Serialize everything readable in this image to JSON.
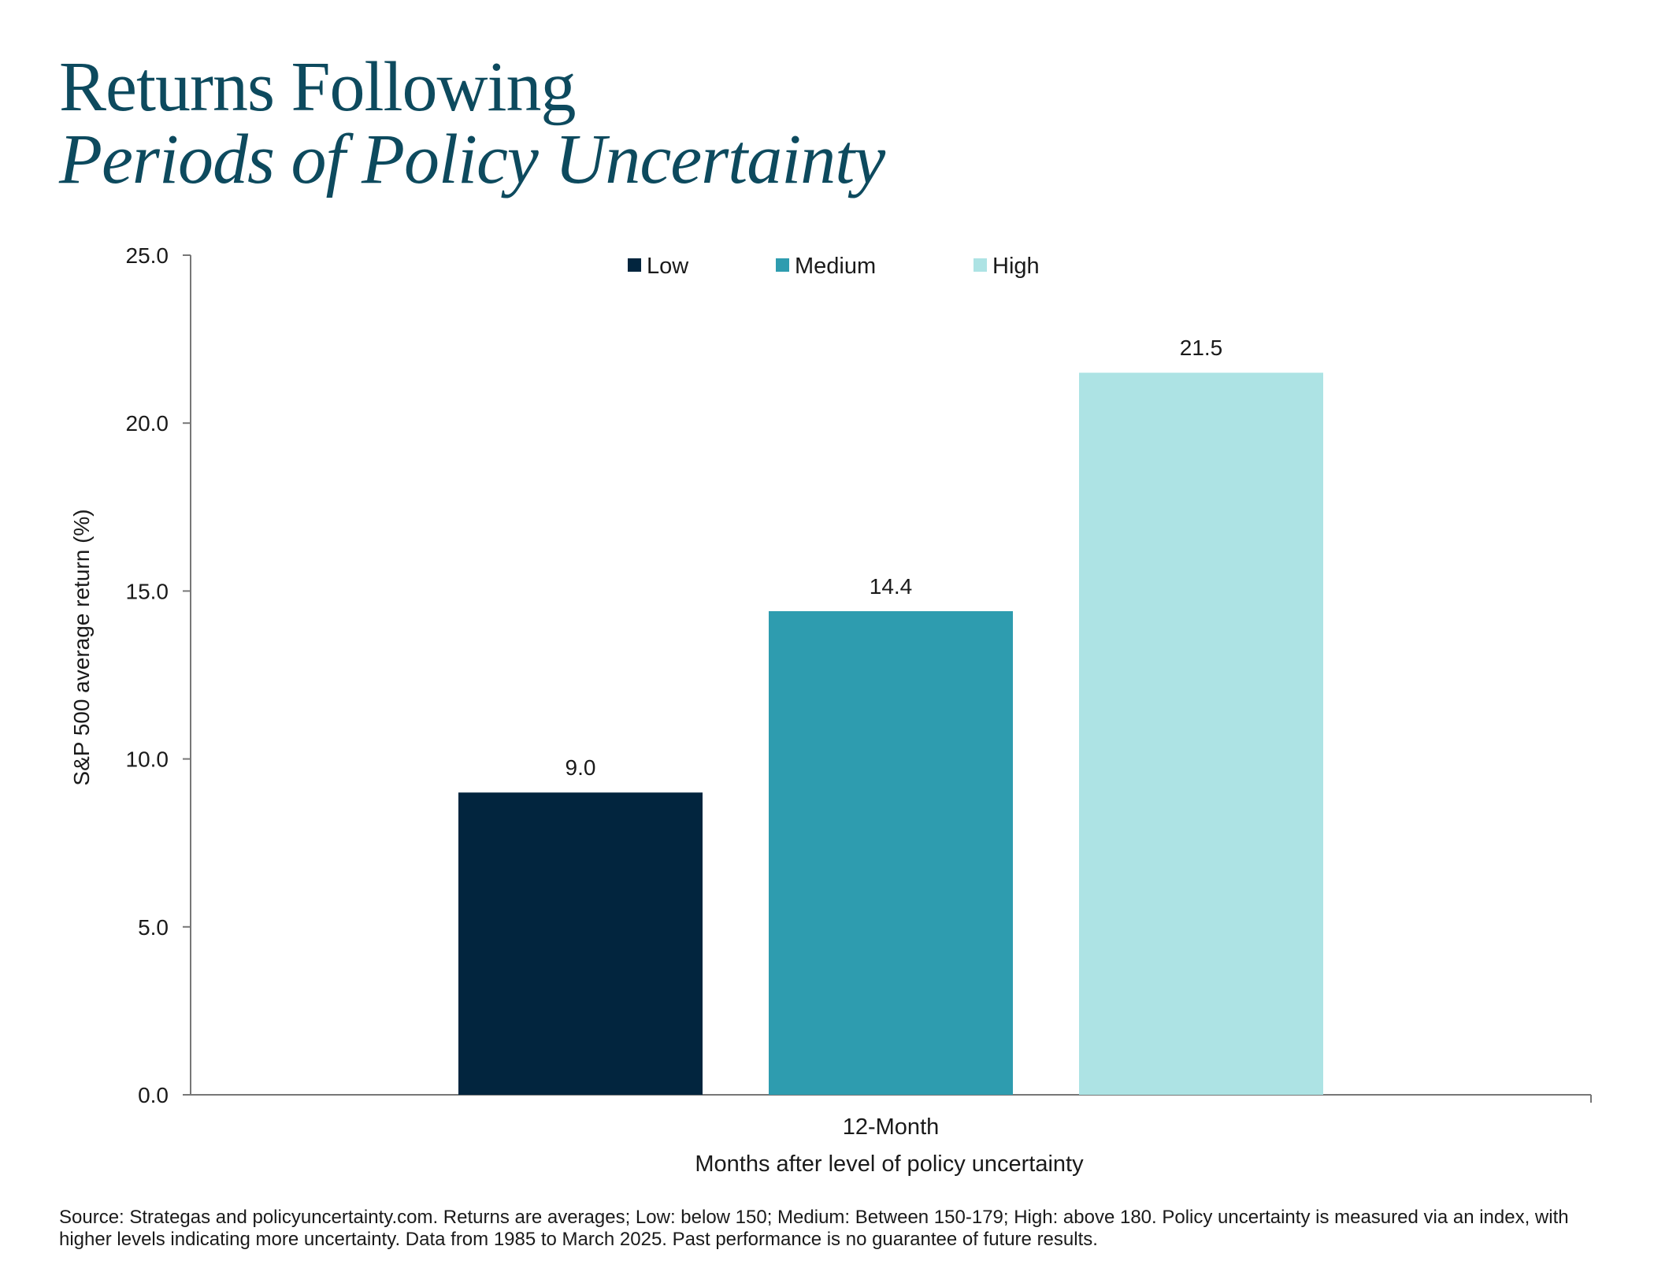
{
  "title": {
    "line1": "Returns Following",
    "line2": "Periods of Policy Uncertainty"
  },
  "chart_data": {
    "type": "bar",
    "categories": [
      "12-Month"
    ],
    "series": [
      {
        "name": "Low",
        "values": [
          9.0
        ],
        "color": "#02253e"
      },
      {
        "name": "Medium",
        "values": [
          14.4
        ],
        "color": "#2e9caf"
      },
      {
        "name": "High",
        "values": [
          21.5
        ],
        "color": "#ade3e4"
      }
    ],
    "data_labels": [
      "9.0",
      "14.4",
      "21.5"
    ],
    "ylim": [
      0,
      25
    ],
    "yticks": [
      "0.0",
      "5.0",
      "10.0",
      "15.0",
      "20.0",
      "25.0"
    ],
    "ylabel": "S&P 500 average return (%)",
    "xlabel": "Months after level of policy uncertainty",
    "legend_position": "top-center",
    "grid": false
  },
  "source_note": "Source: Strategas and policyuncertainty.com. Returns are averages; Low: below 150; Medium: Between 150-179; High: above 180. Policy uncertainty is measured via an index, with higher levels indicating more uncertainty. Data from 1985 to March 2025. Past performance is no guarantee of future results."
}
